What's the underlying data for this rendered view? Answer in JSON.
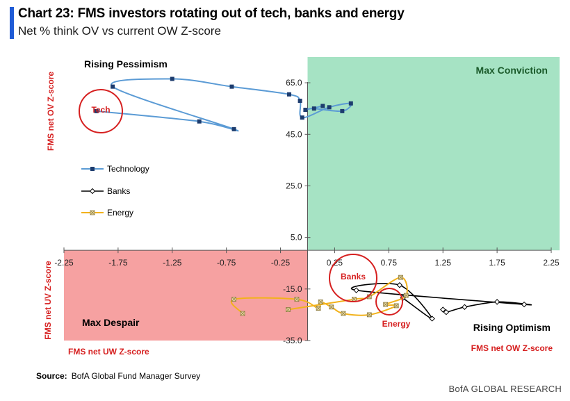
{
  "header": {
    "title": "Chart 23: FMS investors rotating out of tech, banks and energy",
    "subtitle": "Net % think OV vs current OW Z-score"
  },
  "footer": {
    "source_label": "Source:",
    "source_text": "BofA Global Fund Manager Survey",
    "credit": "BofA GLOBAL RESEARCH"
  },
  "colors": {
    "technology": "#5b9bd5",
    "banks": "#000000",
    "energy": "#f2b21b",
    "max_conviction_bg": "#a6e3c4",
    "max_despair_bg": "#f6a1a1",
    "annotation_red": "#d62020",
    "quadrant_dark_green": "#1a5a2a"
  },
  "chart_data": {
    "type": "scatter",
    "x_axis": {
      "range": [
        -2.25,
        2.25
      ],
      "ticks": [
        -2.25,
        -1.75,
        -1.25,
        -0.75,
        -0.25,
        0.25,
        0.75,
        1.25,
        1.75,
        2.25
      ],
      "tick_labels": [
        "-2.25",
        "-1.75",
        "-1.25",
        "-0.75",
        "-0.25",
        "0.25",
        "0.75",
        "1.25",
        "1.75",
        "2.25"
      ]
    },
    "y_axis": {
      "range": [
        -35,
        75
      ],
      "ticks": [
        -35,
        -15,
        5,
        25,
        45,
        65
      ],
      "tick_labels": [
        "-35.0",
        "-15.0",
        "5.0",
        "25.0",
        "45.0",
        "65.0"
      ]
    },
    "quadrant_labels": {
      "top_left": "Rising Pessimism",
      "top_right": "Max Conviction",
      "bottom_left": "Max Despair",
      "bottom_right": "Rising Optimism"
    },
    "axis_labels": {
      "y_top": "FMS net OV Z-score",
      "y_bottom": "FMS net UV Z-score",
      "x_left": "FMS net UW Z-score",
      "x_right": "FMS net OW Z-score"
    },
    "annotations": [
      "Tech",
      "Banks",
      "Energy"
    ],
    "series": [
      {
        "name": "Technology",
        "points": [
          [
            -1.95,
            54.0
          ],
          [
            -1.0,
            50.0
          ],
          [
            -0.68,
            47.0
          ],
          [
            -1.8,
            63.5
          ],
          [
            -1.25,
            66.5
          ],
          [
            -0.7,
            63.5
          ],
          [
            -0.17,
            60.5
          ],
          [
            -0.07,
            58.0
          ],
          [
            -0.05,
            51.5
          ],
          [
            0.2,
            55.5
          ],
          [
            0.4,
            57.0
          ],
          [
            0.32,
            54.0
          ],
          [
            0.06,
            55.0
          ],
          [
            -0.02,
            54.5
          ],
          [
            0.14,
            56.0
          ]
        ]
      },
      {
        "name": "Banks",
        "points": [
          [
            1.25,
            -23.0
          ],
          [
            1.28,
            -24.0
          ],
          [
            1.45,
            -22.0
          ],
          [
            1.75,
            -20.0
          ],
          [
            2.0,
            -21.0
          ],
          [
            0.45,
            -15.5
          ],
          [
            0.85,
            -13.5
          ],
          [
            1.15,
            -26.5
          ],
          [
            0.88,
            -18.5
          ]
        ]
      },
      {
        "name": "Energy",
        "points": [
          [
            -0.6,
            -24.5
          ],
          [
            -0.68,
            -19.0
          ],
          [
            -0.1,
            -19.0
          ],
          [
            0.1,
            -22.5
          ],
          [
            0.12,
            -20.0
          ],
          [
            0.22,
            -22.0
          ],
          [
            0.33,
            -24.5
          ],
          [
            0.57,
            -25.0
          ],
          [
            0.82,
            -21.5
          ],
          [
            0.72,
            -21.0
          ],
          [
            0.91,
            -17.5
          ],
          [
            0.86,
            -10.5
          ],
          [
            0.57,
            -18.0
          ],
          [
            0.43,
            -19.0
          ],
          [
            -0.18,
            -23.0
          ]
        ]
      }
    ],
    "legend": {
      "position": "left-middle"
    },
    "grid": false
  }
}
